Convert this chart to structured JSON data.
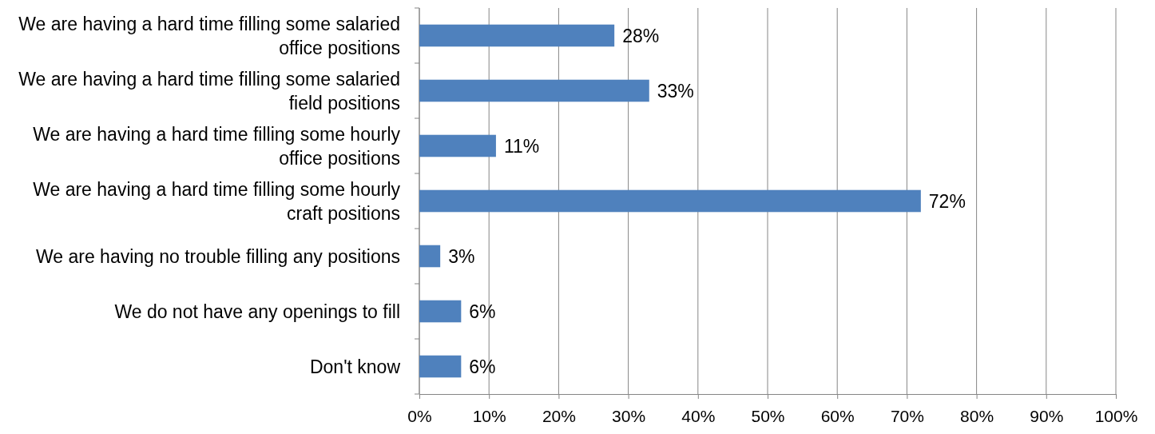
{
  "chart_data": {
    "type": "bar",
    "orientation": "horizontal",
    "categories": [
      "We are having a hard time filling some salaried office positions",
      "We are having a hard time filling some salaried field positions",
      "We are having a hard time filling some hourly office positions",
      "We are having a hard time filling some hourly craft positions",
      "We are having no trouble filling any positions",
      "We do not have any openings to fill",
      "Don't know"
    ],
    "values": [
      28,
      33,
      11,
      72,
      3,
      6,
      6
    ],
    "value_labels": [
      "28%",
      "33%",
      "11%",
      "72%",
      "3%",
      "6%",
      "6%"
    ],
    "color": "#4f81bd",
    "xlim": [
      0,
      100
    ],
    "xticks": [
      {
        "value": 0,
        "label": "0%"
      },
      {
        "value": 10,
        "label": "10%"
      },
      {
        "value": 20,
        "label": "20%"
      },
      {
        "value": 30,
        "label": "30%"
      },
      {
        "value": 40,
        "label": "40%"
      },
      {
        "value": 50,
        "label": "50%"
      },
      {
        "value": 60,
        "label": "60%"
      },
      {
        "value": 70,
        "label": "70%"
      },
      {
        "value": 80,
        "label": "80%"
      },
      {
        "value": 90,
        "label": "90%"
      },
      {
        "value": 100,
        "label": "100%"
      }
    ],
    "grid": "x"
  }
}
